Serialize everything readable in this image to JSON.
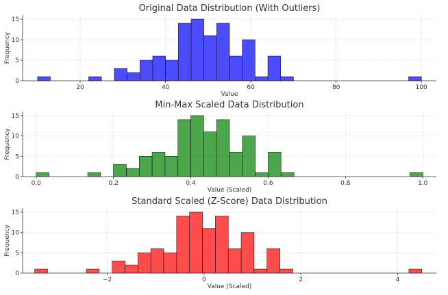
{
  "chart_data": [
    {
      "type": "bar",
      "title": "Original Data Distribution (With Outliers)",
      "xlabel": "Value",
      "ylabel": "Frequency",
      "color": "#0000ff",
      "xlim": [
        6.5,
        103.5
      ],
      "ylim": [
        0,
        16
      ],
      "xticks": [
        {
          "value": 20,
          "label": "20"
        },
        {
          "value": 40,
          "label": "40"
        },
        {
          "value": 60,
          "label": "60"
        },
        {
          "value": 80,
          "label": "80"
        },
        {
          "value": 100,
          "label": "100"
        }
      ],
      "yticks": [
        {
          "value": 0,
          "label": "0"
        },
        {
          "value": 5,
          "label": "5"
        },
        {
          "value": 10,
          "label": "10"
        },
        {
          "value": 15,
          "label": "15"
        }
      ],
      "bin_edges": [
        10,
        13,
        16,
        19,
        22,
        25,
        28,
        31,
        34,
        37,
        40,
        43,
        46,
        49,
        52,
        55,
        58,
        61,
        64,
        67,
        70,
        73,
        76,
        79,
        82,
        85,
        88,
        91,
        94,
        97,
        100
      ],
      "counts": [
        1,
        0,
        0,
        0,
        1,
        0,
        3,
        2,
        5,
        6,
        5,
        14,
        15,
        11,
        14,
        6,
        10,
        1,
        6,
        1,
        0,
        0,
        0,
        0,
        0,
        0,
        0,
        0,
        0,
        1
      ]
    },
    {
      "type": "bar",
      "title": "Min-Max Scaled Data Distribution",
      "xlabel": "Value (Scaled)",
      "ylabel": "Frequency",
      "color": "#008000",
      "xlim": [
        -0.035,
        1.035
      ],
      "ylim": [
        0,
        16
      ],
      "xticks": [
        {
          "value": 0.0,
          "label": "0.0"
        },
        {
          "value": 0.2,
          "label": "0.2"
        },
        {
          "value": 0.4,
          "label": "0.4"
        },
        {
          "value": 0.6,
          "label": "0.6"
        },
        {
          "value": 0.8,
          "label": "0.8"
        },
        {
          "value": 1.0,
          "label": "1.0"
        }
      ],
      "yticks": [
        {
          "value": 0,
          "label": "0"
        },
        {
          "value": 5,
          "label": "5"
        },
        {
          "value": 10,
          "label": "10"
        },
        {
          "value": 15,
          "label": "15"
        }
      ],
      "bin_edges": [
        0,
        0.0333,
        0.0667,
        0.1,
        0.1333,
        0.1667,
        0.2,
        0.2333,
        0.2667,
        0.3,
        0.3333,
        0.3667,
        0.4,
        0.4333,
        0.4667,
        0.5,
        0.5333,
        0.5667,
        0.6,
        0.6333,
        0.6667,
        0.7,
        0.7333,
        0.7667,
        0.8,
        0.8333,
        0.8667,
        0.9,
        0.9333,
        0.9667,
        1.0
      ],
      "counts": [
        1,
        0,
        0,
        0,
        1,
        0,
        3,
        2,
        5,
        6,
        5,
        14,
        15,
        11,
        14,
        6,
        10,
        1,
        6,
        1,
        0,
        0,
        0,
        0,
        0,
        0,
        0,
        0,
        0,
        1
      ]
    },
    {
      "type": "bar",
      "title": "Standard Scaled (Z-Score) Data Distribution",
      "xlabel": "Value (Scaled)",
      "ylabel": "Frequency",
      "color": "#ff0000",
      "xlim": [
        -3.75,
        4.8
      ],
      "ylim": [
        0,
        16
      ],
      "xticks": [
        {
          "value": -2,
          "label": "−2"
        },
        {
          "value": 0,
          "label": "0"
        },
        {
          "value": 2,
          "label": "2"
        },
        {
          "value": 4,
          "label": "4"
        }
      ],
      "yticks": [
        {
          "value": 0,
          "label": "0"
        },
        {
          "value": 5,
          "label": "5"
        },
        {
          "value": 10,
          "label": "10"
        },
        {
          "value": 15,
          "label": "15"
        }
      ],
      "bin_edges": [
        -3.5,
        -3.233,
        -2.967,
        -2.7,
        -2.433,
        -2.167,
        -1.9,
        -1.633,
        -1.367,
        -1.1,
        -0.833,
        -0.567,
        -0.3,
        -0.033,
        0.233,
        0.5,
        0.767,
        1.033,
        1.3,
        1.567,
        1.833,
        2.1,
        2.367,
        2.633,
        2.9,
        3.167,
        3.433,
        3.7,
        3.967,
        4.233,
        4.5
      ],
      "counts": [
        1,
        0,
        0,
        0,
        1,
        0,
        3,
        2,
        5,
        6,
        5,
        14,
        15,
        11,
        14,
        6,
        10,
        1,
        6,
        1,
        0,
        0,
        0,
        0,
        0,
        0,
        0,
        0,
        0,
        1
      ]
    }
  ]
}
